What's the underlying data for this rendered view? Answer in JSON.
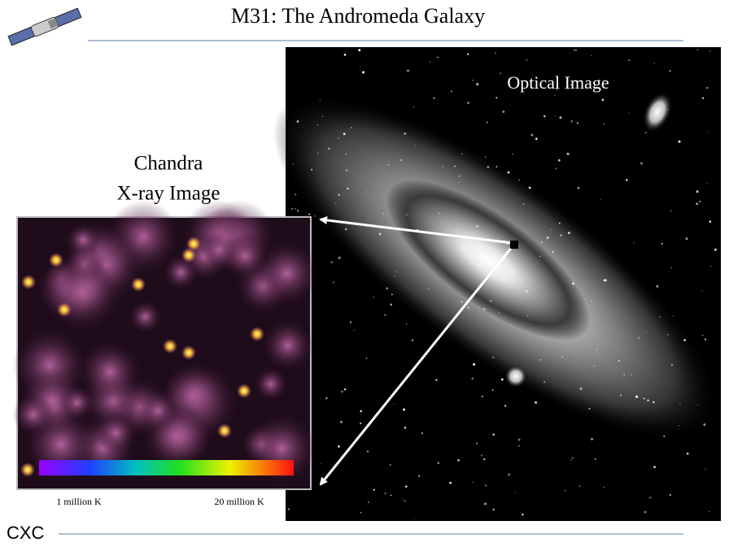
{
  "header": {
    "title": "M31:  The Andromeda Galaxy"
  },
  "optical": {
    "label": "Optical Image"
  },
  "xray": {
    "label_lines": [
      "Chandra",
      "X-ray  Image"
    ],
    "colorbar": {
      "low_label": "1 million K",
      "high_label": "20 million K"
    }
  },
  "footer": {
    "text": "CXC"
  }
}
